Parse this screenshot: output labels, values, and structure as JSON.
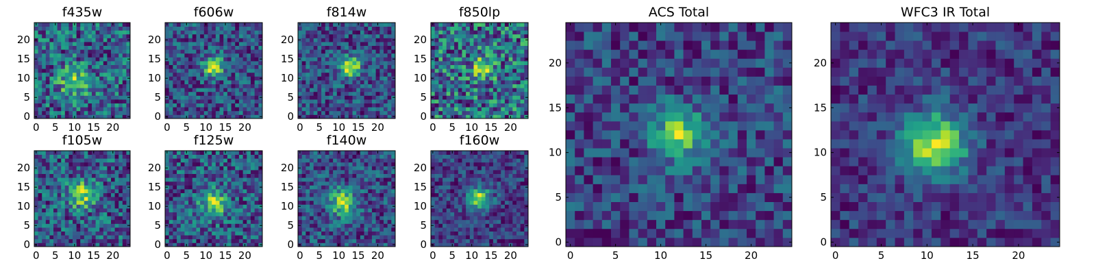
{
  "chart_data": [
    {
      "type": "heatmap",
      "title": "f435w",
      "grid_size": 25,
      "xlim": [
        0,
        24
      ],
      "ylim": [
        0,
        24
      ],
      "xticks": [
        0,
        5,
        10,
        15,
        20
      ],
      "yticks": [
        0,
        5,
        10,
        15,
        20
      ],
      "colormap": "viridis",
      "peak": [
        10,
        9
      ],
      "noise": 0.55,
      "signal": 0.35,
      "width": 3.0,
      "seed": 11
    },
    {
      "type": "heatmap",
      "title": "f606w",
      "grid_size": 25,
      "xlim": [
        0,
        24
      ],
      "ylim": [
        0,
        24
      ],
      "xticks": [
        0,
        5,
        10,
        15,
        20
      ],
      "yticks": [
        0,
        5,
        10,
        15,
        20
      ],
      "colormap": "viridis",
      "peak": [
        12,
        13
      ],
      "noise": 0.4,
      "signal": 0.55,
      "width": 1.8,
      "seed": 23
    },
    {
      "type": "heatmap",
      "title": "f814w",
      "grid_size": 25,
      "xlim": [
        0,
        24
      ],
      "ylim": [
        0,
        24
      ],
      "xticks": [
        0,
        5,
        10,
        15,
        20
      ],
      "yticks": [
        0,
        5,
        10,
        15,
        20
      ],
      "colormap": "viridis",
      "peak": [
        13,
        13
      ],
      "noise": 0.4,
      "signal": 0.6,
      "width": 1.8,
      "seed": 37
    },
    {
      "type": "heatmap",
      "title": "f850lp",
      "grid_size": 25,
      "xlim": [
        0,
        24
      ],
      "ylim": [
        0,
        24
      ],
      "xticks": [
        0,
        5,
        10,
        15,
        20
      ],
      "yticks": [
        0,
        5,
        10,
        15,
        20
      ],
      "colormap": "viridis",
      "peak": [
        13,
        13
      ],
      "noise": 0.5,
      "signal": 0.35,
      "width": 2.0,
      "seed": 41
    },
    {
      "type": "heatmap",
      "title": "f105w",
      "grid_size": 25,
      "xlim": [
        0,
        24
      ],
      "ylim": [
        0,
        24
      ],
      "xticks": [
        0,
        5,
        10,
        15,
        20
      ],
      "yticks": [
        0,
        5,
        10,
        15,
        20
      ],
      "colormap": "viridis",
      "peak": [
        12,
        13
      ],
      "noise": 0.5,
      "signal": 0.45,
      "width": 2.5,
      "seed": 53
    },
    {
      "type": "heatmap",
      "title": "f125w",
      "grid_size": 25,
      "xlim": [
        0,
        24
      ],
      "ylim": [
        0,
        24
      ],
      "xticks": [
        0,
        5,
        10,
        15,
        20
      ],
      "yticks": [
        0,
        5,
        10,
        15,
        20
      ],
      "colormap": "viridis",
      "peak": [
        12,
        11
      ],
      "noise": 0.5,
      "signal": 0.45,
      "width": 2.5,
      "seed": 67
    },
    {
      "type": "heatmap",
      "title": "f140w",
      "grid_size": 25,
      "xlim": [
        0,
        24
      ],
      "ylim": [
        0,
        24
      ],
      "xticks": [
        0,
        5,
        10,
        15,
        20
      ],
      "yticks": [
        0,
        5,
        10,
        15,
        20
      ],
      "colormap": "viridis",
      "peak": [
        11,
        11
      ],
      "noise": 0.45,
      "signal": 0.55,
      "width": 2.5,
      "seed": 71
    },
    {
      "type": "heatmap",
      "title": "f160w",
      "grid_size": 25,
      "xlim": [
        0,
        24
      ],
      "ylim": [
        0,
        24
      ],
      "xticks": [
        0,
        5,
        10,
        15,
        20
      ],
      "yticks": [
        0,
        5,
        10,
        15,
        20
      ],
      "colormap": "viridis",
      "peak": [
        12,
        12
      ],
      "noise": 0.35,
      "signal": 0.65,
      "width": 2.0,
      "seed": 83
    },
    {
      "type": "heatmap",
      "title": "ACS Total",
      "grid_size": 25,
      "xlim": [
        0,
        24
      ],
      "ylim": [
        0,
        24
      ],
      "xticks": [
        0,
        5,
        10,
        15,
        20
      ],
      "yticks": [
        0,
        5,
        10,
        15,
        20
      ],
      "colormap": "viridis",
      "peak": [
        12,
        12
      ],
      "noise": 0.4,
      "signal": 0.6,
      "width": 2.0,
      "seed": 97
    },
    {
      "type": "heatmap",
      "title": "WFC3 IR Total",
      "grid_size": 25,
      "xlim": [
        0,
        24
      ],
      "ylim": [
        0,
        24
      ],
      "xticks": [
        0,
        5,
        10,
        15,
        20
      ],
      "yticks": [
        0,
        5,
        10,
        15,
        20
      ],
      "colormap": "viridis",
      "peak": [
        11,
        11
      ],
      "noise": 0.3,
      "signal": 0.7,
      "width": 2.4,
      "seed": 101
    }
  ]
}
